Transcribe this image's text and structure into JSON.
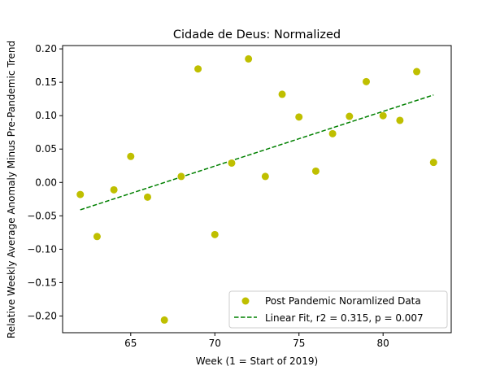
{
  "chart_data": {
    "type": "scatter",
    "title": "Cidade de Deus: Normalized",
    "xlabel": "Week (1 = Start of 2019)",
    "ylabel": "Relative Weekly Average Anomaly Minus Pre-Pandemic Trend",
    "xlim": [
      60.95,
      84.05
    ],
    "ylim": [
      -0.225,
      0.205
    ],
    "xticks": [
      65,
      70,
      75,
      80
    ],
    "yticks": [
      -0.2,
      -0.15,
      -0.1,
      -0.05,
      0.0,
      0.05,
      0.1,
      0.15,
      0.2
    ],
    "xtick_labels": [
      "65",
      "70",
      "75",
      "80"
    ],
    "ytick_labels": [
      "−0.20",
      "−0.15",
      "−0.10",
      "−0.05",
      "0.00",
      "0.05",
      "0.10",
      "0.15",
      "0.20"
    ],
    "grid": false,
    "legend_position": "lower-right",
    "series": [
      {
        "name": "Post Pandemic Noramlized Data",
        "kind": "scatter",
        "color": "#bfbf00",
        "x": [
          62,
          63,
          64,
          65,
          66,
          67,
          68,
          69,
          70,
          71,
          72,
          73,
          74,
          75,
          76,
          77,
          78,
          79,
          80,
          81,
          82,
          83
        ],
        "y": [
          -0.018,
          -0.081,
          -0.011,
          0.039,
          -0.022,
          -0.206,
          0.009,
          0.17,
          -0.078,
          0.029,
          0.185,
          0.009,
          0.132,
          0.098,
          0.017,
          0.073,
          0.099,
          0.151,
          0.1,
          0.093,
          0.166,
          0.03
        ]
      },
      {
        "name": "Linear Fit, r2 = 0.315, p = 0.007",
        "kind": "line",
        "style": "dashed",
        "color": "#008000",
        "x": [
          62,
          83
        ],
        "y": [
          -0.041,
          0.131
        ]
      }
    ]
  }
}
